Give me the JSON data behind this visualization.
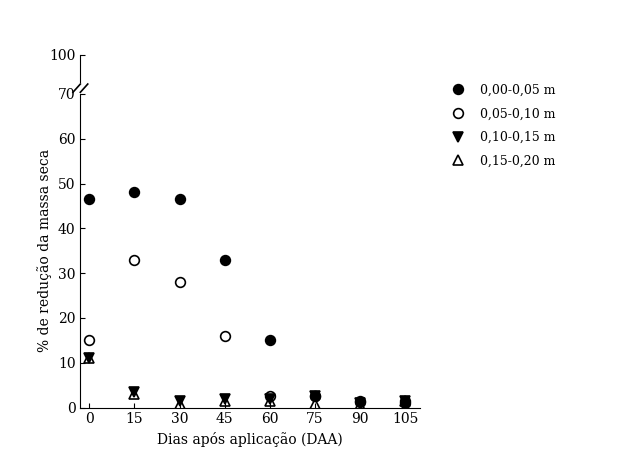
{
  "x_ticks": [
    0,
    15,
    30,
    45,
    60,
    75,
    90,
    105
  ],
  "xlabel": "Dias após aplicação (DAA)",
  "ylabel": "% de redução da massa seca",
  "series": [
    {
      "label": "0,00-0,05 m",
      "marker": "o",
      "fillstyle": "full",
      "color": "black",
      "x": [
        0,
        15,
        30,
        45,
        60,
        75,
        90,
        105
      ],
      "y": [
        46.5,
        48.0,
        46.5,
        33.0,
        15.0,
        2.5,
        1.2,
        1.0
      ]
    },
    {
      "label": "0,05-0,10 m",
      "marker": "o",
      "fillstyle": "none",
      "color": "black",
      "x": [
        0,
        15,
        30,
        45,
        60,
        75,
        90,
        105
      ],
      "y": [
        15.0,
        33.0,
        28.0,
        16.0,
        2.5,
        2.5,
        1.5,
        1.5
      ]
    },
    {
      "label": "0,10-0,15 m",
      "marker": "v",
      "fillstyle": "full",
      "color": "black",
      "x": [
        0,
        15,
        30,
        45,
        60,
        75,
        90,
        105
      ],
      "y": [
        11.0,
        3.5,
        1.5,
        2.0,
        2.0,
        2.5,
        1.0,
        1.5
      ]
    },
    {
      "label": "0,15-0,20 m",
      "marker": "^",
      "fillstyle": "none",
      "color": "black",
      "x": [
        0,
        15,
        30,
        45,
        60,
        75,
        90,
        105
      ],
      "y": [
        11.0,
        3.0,
        0.8,
        1.5,
        1.5,
        0.8,
        0.5,
        1.5
      ]
    }
  ],
  "background_color": "#ffffff",
  "label_fontsize": 10,
  "tick_fontsize": 10,
  "markersize": 7,
  "linewidth": 1.2
}
